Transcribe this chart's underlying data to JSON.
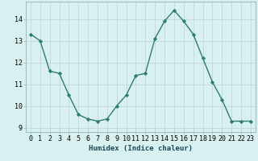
{
  "x": [
    0,
    1,
    2,
    3,
    4,
    5,
    6,
    7,
    8,
    9,
    10,
    11,
    12,
    13,
    14,
    15,
    16,
    17,
    18,
    19,
    20,
    21,
    22,
    23
  ],
  "y": [
    13.3,
    13.0,
    11.6,
    11.5,
    10.5,
    9.6,
    9.4,
    9.3,
    9.4,
    10.0,
    10.5,
    11.4,
    11.5,
    13.1,
    13.9,
    14.4,
    13.9,
    13.3,
    12.2,
    11.1,
    10.3,
    9.3,
    9.3,
    9.3
  ],
  "line_color": "#2e7d6e",
  "marker": "D",
  "marker_size": 2.2,
  "bg_color": "#d8f0f0",
  "grid_color": "#c0d8d8",
  "xlabel": "Humidex (Indice chaleur)",
  "xlim": [
    -0.5,
    23.5
  ],
  "ylim": [
    8.8,
    14.8
  ],
  "yticks": [
    9,
    10,
    11,
    12,
    13,
    14
  ],
  "xticks": [
    0,
    1,
    2,
    3,
    4,
    5,
    6,
    7,
    8,
    9,
    10,
    11,
    12,
    13,
    14,
    15,
    16,
    17,
    18,
    19,
    20,
    21,
    22,
    23
  ],
  "xlabel_fontsize": 6.5,
  "tick_fontsize": 6.0,
  "line_width": 1.0
}
